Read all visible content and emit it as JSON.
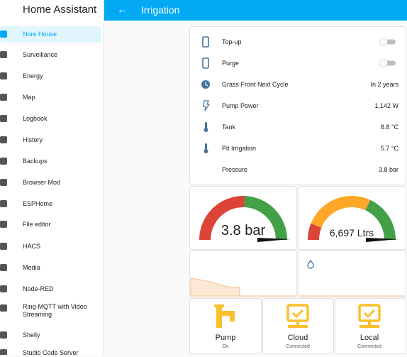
{
  "sidebar": {
    "title": "Home Assistant",
    "items": [
      "Nore House",
      "Surveillance",
      "Energy",
      "Map",
      "Logbook",
      "History",
      "Backups",
      "Browser Mod",
      "ESPHome",
      "File editor",
      "HACS",
      "Media",
      "Node-RED",
      "Ring-MQTT with Video Streaming",
      "Shelly",
      "Studio Code Server"
    ]
  },
  "header": {
    "title": "Irrigation"
  },
  "switches": [
    "Top-up",
    "Purge"
  ],
  "sensors": [
    {
      "name": "Grass Front Next Cycle",
      "state": "In 2 years"
    },
    {
      "name": "Pump Power",
      "state": "1,142 W"
    },
    {
      "name": "Tank",
      "state": "8.8 °C"
    },
    {
      "name": "Pit Irrigation",
      "state": "5.7 °C"
    },
    {
      "name": "Pressure",
      "state": "3.8 bar"
    }
  ],
  "gauges": [
    {
      "label": "3.8 bar"
    },
    {
      "label": "6,697 Ltrs"
    }
  ],
  "buttons": [
    {
      "name": "Pump",
      "state": "On"
    },
    {
      "name": "Cloud",
      "state": "Connected"
    },
    {
      "name": "Local",
      "state": "Connected"
    }
  ]
}
